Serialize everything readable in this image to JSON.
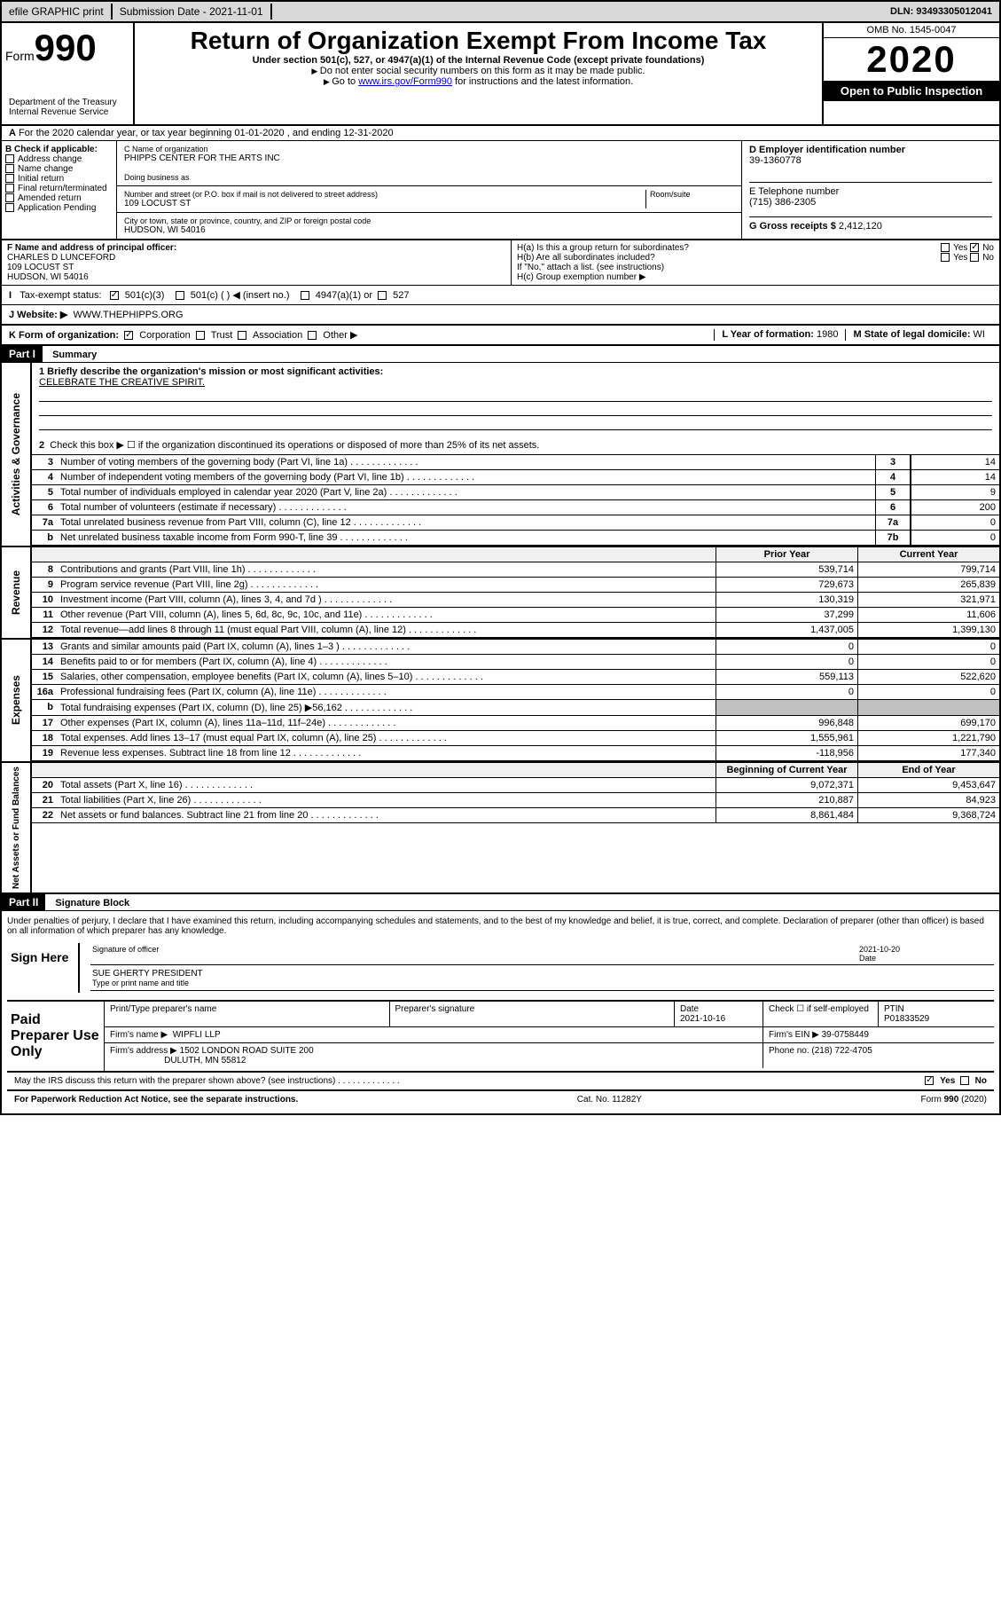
{
  "topbar": {
    "efile": "efile GRAPHIC print",
    "submission": "Submission Date - 2021-11-01",
    "dln": "DLN: 93493305012041"
  },
  "header": {
    "form_label": "Form",
    "form_num": "990",
    "dept": "Department of the Treasury\nInternal Revenue Service",
    "title": "Return of Organization Exempt From Income Tax",
    "subtitle": "Under section 501(c), 527, or 4947(a)(1) of the Internal Revenue Code (except private foundations)",
    "note1": "Do not enter social security numbers on this form as it may be made public.",
    "note2_pre": "Go to ",
    "note2_link": "www.irs.gov/Form990",
    "note2_post": " for instructions and the latest information.",
    "omb": "OMB No. 1545-0047",
    "year": "2020",
    "inspection": "Open to Public Inspection"
  },
  "section_a": "For the 2020 calendar year, or tax year beginning 01-01-2020   , and ending 12-31-2020",
  "col_b": {
    "label": "B Check if applicable:",
    "items": [
      "Address change",
      "Name change",
      "Initial return",
      "Final return/terminated",
      "Amended return",
      "Application Pending"
    ]
  },
  "col_c": {
    "name_label": "C Name of organization",
    "name": "PHIPPS CENTER FOR THE ARTS INC",
    "dba_label": "Doing business as",
    "street_label": "Number and street (or P.O. box if mail is not delivered to street address)",
    "room_label": "Room/suite",
    "street": "109 LOCUST ST",
    "city_label": "City or town, state or province, country, and ZIP or foreign postal code",
    "city": "HUDSON, WI  54016"
  },
  "col_d": {
    "ein_label": "D Employer identification number",
    "ein": "39-1360778",
    "phone_label": "E Telephone number",
    "phone": "(715) 386-2305",
    "gross_label": "G Gross receipts $ ",
    "gross": "2,412,120"
  },
  "officer": {
    "label": "F  Name and address of principal officer:",
    "name": "CHARLES D LUNCEFORD",
    "street": "109 LOCUST ST",
    "city": "HUDSON, WI  54016"
  },
  "section_h": {
    "h_a": "H(a)  Is this a group return for subordinates?",
    "h_b": "H(b)  Are all subordinates included?",
    "h_note": "If \"No,\" attach a list. (see instructions)",
    "h_c": "H(c)  Group exemption number ▶",
    "yes": "Yes",
    "no": "No"
  },
  "tax_status": {
    "label": "Tax-exempt status:",
    "opt1": "501(c)(3)",
    "opt2": "501(c) (   ) ◀ (insert no.)",
    "opt3": "4947(a)(1) or",
    "opt4": "527"
  },
  "website": {
    "label": "J   Website: ▶",
    "value": "WWW.THEPHIPPS.ORG"
  },
  "org_form": {
    "label": "K Form of organization:",
    "corp": "Corporation",
    "trust": "Trust",
    "assoc": "Association",
    "other": "Other ▶",
    "year_label": "L Year of formation: ",
    "year": "1980",
    "state_label": "M State of legal domicile: ",
    "state": "WI"
  },
  "part1": {
    "header": "Part I",
    "title": "Summary"
  },
  "governance": {
    "side": "Activities & Governance",
    "line1_label": "1  Briefly describe the organization's mission or most significant activities:",
    "mission": "CELEBRATE THE CREATIVE SPIRIT.",
    "line2": "Check this box ▶ ☐  if the organization discontinued its operations or disposed of more than 25% of its net assets.",
    "lines": [
      {
        "n": "3",
        "t": "Number of voting members of the governing body (Part VI, line 1a)",
        "b": "3",
        "v": "14"
      },
      {
        "n": "4",
        "t": "Number of independent voting members of the governing body (Part VI, line 1b)",
        "b": "4",
        "v": "14"
      },
      {
        "n": "5",
        "t": "Total number of individuals employed in calendar year 2020 (Part V, line 2a)",
        "b": "5",
        "v": "9"
      },
      {
        "n": "6",
        "t": "Total number of volunteers (estimate if necessary)",
        "b": "6",
        "v": "200"
      },
      {
        "n": "7a",
        "t": "Total unrelated business revenue from Part VIII, column (C), line 12",
        "b": "7a",
        "v": "0"
      },
      {
        "n": "b",
        "t": "Net unrelated business taxable income from Form 990-T, line 39",
        "b": "7b",
        "v": "0"
      }
    ]
  },
  "revenue": {
    "side": "Revenue",
    "prior": "Prior Year",
    "current": "Current Year",
    "lines": [
      {
        "n": "8",
        "t": "Contributions and grants (Part VIII, line 1h)",
        "p": "539,714",
        "c": "799,714"
      },
      {
        "n": "9",
        "t": "Program service revenue (Part VIII, line 2g)",
        "p": "729,673",
        "c": "265,839"
      },
      {
        "n": "10",
        "t": "Investment income (Part VIII, column (A), lines 3, 4, and 7d )",
        "p": "130,319",
        "c": "321,971"
      },
      {
        "n": "11",
        "t": "Other revenue (Part VIII, column (A), lines 5, 6d, 8c, 9c, 10c, and 11e)",
        "p": "37,299",
        "c": "11,606"
      },
      {
        "n": "12",
        "t": "Total revenue—add lines 8 through 11 (must equal Part VIII, column (A), line 12)",
        "p": "1,437,005",
        "c": "1,399,130"
      }
    ]
  },
  "expenses": {
    "side": "Expenses",
    "lines": [
      {
        "n": "13",
        "t": "Grants and similar amounts paid (Part IX, column (A), lines 1–3 )",
        "p": "0",
        "c": "0"
      },
      {
        "n": "14",
        "t": "Benefits paid to or for members (Part IX, column (A), line 4)",
        "p": "0",
        "c": "0"
      },
      {
        "n": "15",
        "t": "Salaries, other compensation, employee benefits (Part IX, column (A), lines 5–10)",
        "p": "559,113",
        "c": "522,620"
      },
      {
        "n": "16a",
        "t": "Professional fundraising fees (Part IX, column (A), line 11e)",
        "p": "0",
        "c": "0"
      },
      {
        "n": "b",
        "t": "Total fundraising expenses (Part IX, column (D), line 25) ▶56,162",
        "p": "",
        "c": "",
        "gray": true
      },
      {
        "n": "17",
        "t": "Other expenses (Part IX, column (A), lines 11a–11d, 11f–24e)",
        "p": "996,848",
        "c": "699,170"
      },
      {
        "n": "18",
        "t": "Total expenses. Add lines 13–17 (must equal Part IX, column (A), line 25)",
        "p": "1,555,961",
        "c": "1,221,790"
      },
      {
        "n": "19",
        "t": "Revenue less expenses. Subtract line 18 from line 12",
        "p": "-118,956",
        "c": "177,340"
      }
    ]
  },
  "netassets": {
    "side": "Net Assets or Fund Balances",
    "begin": "Beginning of Current Year",
    "end": "End of Year",
    "lines": [
      {
        "n": "20",
        "t": "Total assets (Part X, line 16)",
        "p": "9,072,371",
        "c": "9,453,647"
      },
      {
        "n": "21",
        "t": "Total liabilities (Part X, line 26)",
        "p": "210,887",
        "c": "84,923"
      },
      {
        "n": "22",
        "t": "Net assets or fund balances. Subtract line 21 from line 20",
        "p": "8,861,484",
        "c": "9,368,724"
      }
    ]
  },
  "part2": {
    "header": "Part II",
    "title": "Signature Block"
  },
  "sig": {
    "penalty": "Under penalties of perjury, I declare that I have examined this return, including accompanying schedules and statements, and to the best of my knowledge and belief, it is true, correct, and complete. Declaration of preparer (other than officer) is based on all information of which preparer has any knowledge.",
    "sign_here": "Sign Here",
    "officer_sig": "Signature of officer",
    "date": "Date",
    "sig_date": "2021-10-20",
    "officer_name": "SUE GHERTY PRESIDENT",
    "type_name": "Type or print name and title"
  },
  "prep": {
    "label": "Paid Preparer Use Only",
    "name_label": "Print/Type preparer's name",
    "sig_label": "Preparer's signature",
    "date_label": "Date",
    "date": "2021-10-16",
    "check_label": "Check ☐  if self-employed",
    "ptin_label": "PTIN",
    "ptin": "P01833529",
    "firm_name_label": "Firm's name   ▶",
    "firm_name": "WIPFLI LLP",
    "firm_ein_label": "Firm's EIN ▶",
    "firm_ein": "39-0758449",
    "firm_addr_label": "Firm's address ▶",
    "firm_addr1": "1502 LONDON ROAD SUITE 200",
    "firm_addr2": "DULUTH, MN  55812",
    "firm_phone_label": "Phone no.",
    "firm_phone": "(218) 722-4705"
  },
  "footer": {
    "discuss": "May the IRS discuss this return with the preparer shown above? (see instructions)",
    "yes": "Yes",
    "no": "No",
    "paperwork": "For Paperwork Reduction Act Notice, see the separate instructions.",
    "cat": "Cat. No. 11282Y",
    "form": "Form 990 (2020)"
  }
}
